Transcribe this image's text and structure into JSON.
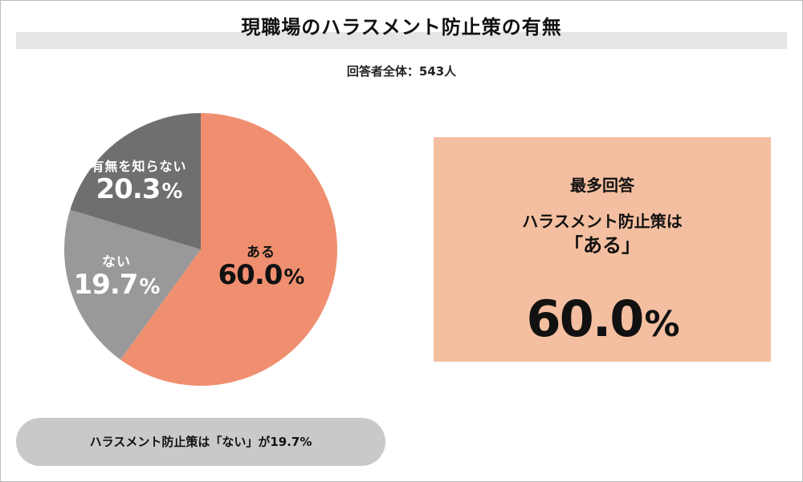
{
  "chart_data": {
    "type": "pie",
    "title": "現職場のハラスメント防止策の有無",
    "subtitle": "回答者全体：543人",
    "unit": "%",
    "slices": [
      {
        "label": "ある",
        "value": 60.0,
        "value_text": "60.0",
        "color": "#f08f70"
      },
      {
        "label": "ない",
        "value": 19.7,
        "value_text": "19.7",
        "color": "#999999"
      },
      {
        "label": "有無を知らない",
        "value": 20.3,
        "value_text": "20.3",
        "color": "#6f6f6f"
      }
    ]
  },
  "callout": {
    "heading": "最多回答",
    "line1": "ハラスメント防止策は",
    "line2": "「ある」",
    "value": "60.0",
    "unit": "%"
  },
  "note": "ハラスメント防止策は「ない」が19.7%"
}
